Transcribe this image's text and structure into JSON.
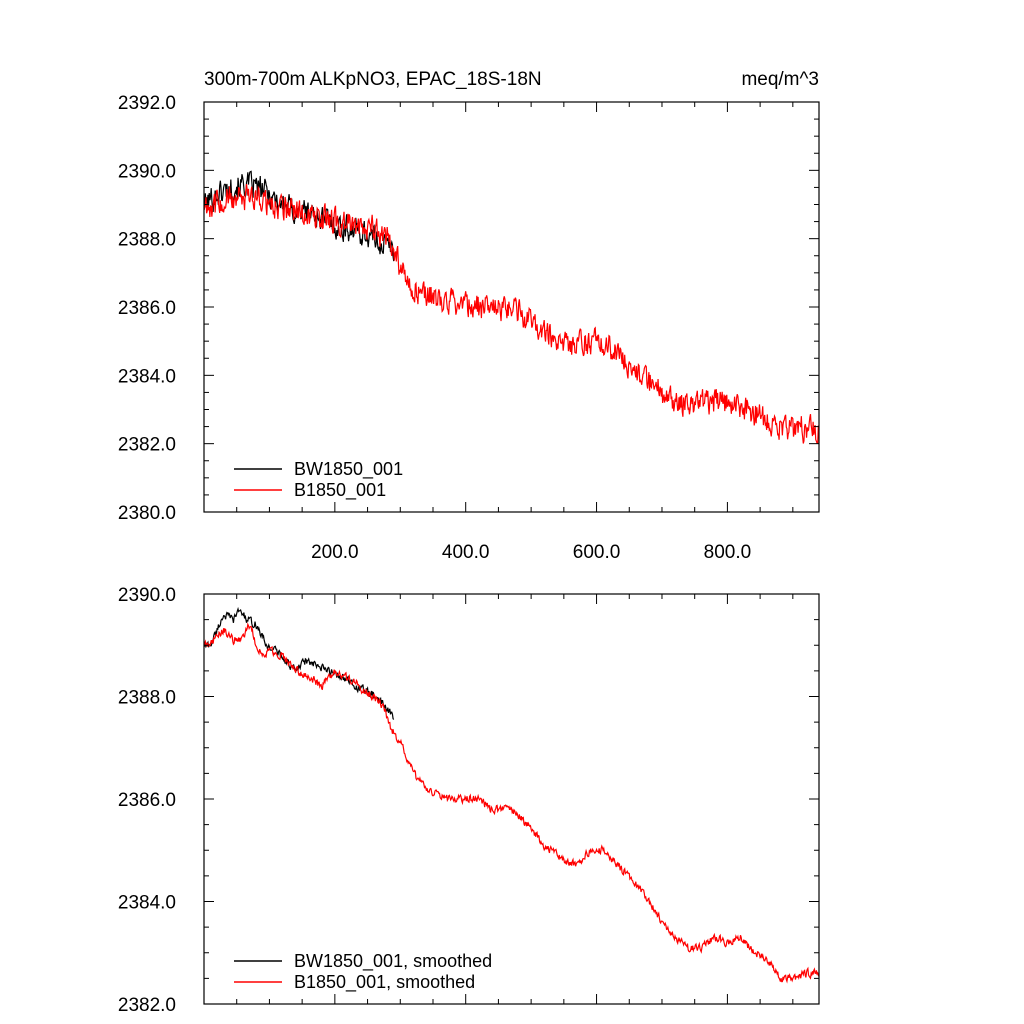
{
  "chart_data": [
    {
      "type": "line",
      "title": "300m-700m ALKpNO3, EPAC_18S-18N",
      "units": "meq/m^3",
      "xlabel": "",
      "ylabel": "",
      "xlim": [
        0,
        940
      ],
      "ylim": [
        2380,
        2392
      ],
      "x_ticks": [
        200,
        400,
        600,
        800
      ],
      "x_tick_labels": [
        "200.0",
        "400.0",
        "600.0",
        "800.0"
      ],
      "y_ticks": [
        2380,
        2382,
        2384,
        2386,
        2388,
        2390,
        2392
      ],
      "y_tick_labels": [
        "2380.0",
        "2382.0",
        "2384.0",
        "2386.0",
        "2388.0",
        "2390.0",
        "2392.0"
      ],
      "legend_position": "bottom-left",
      "series": [
        {
          "name": "BW1850_001",
          "color": "#000000",
          "noise": 0.35,
          "x": [
            0,
            20,
            40,
            60,
            80,
            100,
            120,
            140,
            160,
            180,
            200,
            220,
            240,
            260,
            280,
            290
          ],
          "y": [
            2389.0,
            2389.3,
            2389.5,
            2389.6,
            2389.5,
            2389.3,
            2389.0,
            2388.8,
            2388.8,
            2388.6,
            2388.4,
            2388.3,
            2388.2,
            2388.0,
            2387.8,
            2387.7
          ]
        },
        {
          "name": "B1850_001",
          "color": "#ff0000",
          "noise": 0.35,
          "x": [
            0,
            20,
            40,
            60,
            80,
            100,
            140,
            180,
            220,
            260,
            280,
            300,
            320,
            360,
            400,
            440,
            480,
            500,
            520,
            560,
            590,
            620,
            650,
            680,
            720,
            760,
            800,
            840,
            880,
            940
          ],
          "y": [
            2389.0,
            2389.0,
            2389.2,
            2389.1,
            2389.3,
            2389.0,
            2388.8,
            2388.6,
            2388.4,
            2388.3,
            2388.0,
            2387.2,
            2386.5,
            2386.2,
            2386.1,
            2385.9,
            2385.9,
            2385.6,
            2385.3,
            2384.8,
            2385.0,
            2384.8,
            2384.3,
            2383.8,
            2383.2,
            2383.2,
            2383.2,
            2382.9,
            2382.5,
            2382.4
          ]
        }
      ]
    },
    {
      "type": "line",
      "title": "",
      "xlabel": "",
      "ylabel": "",
      "xlim": [
        0,
        940
      ],
      "ylim": [
        2382,
        2390
      ],
      "y_ticks": [
        2382,
        2384,
        2386,
        2388,
        2390
      ],
      "y_tick_labels": [
        "2382.0",
        "2384.0",
        "2386.0",
        "2388.0",
        "2390.0"
      ],
      "legend_position": "bottom-left",
      "series": [
        {
          "name": "BW1850_001, smoothed",
          "color": "#000000",
          "noise": 0.07,
          "x": [
            0,
            10,
            20,
            30,
            45,
            55,
            65,
            80,
            95,
            110,
            125,
            140,
            155,
            170,
            190,
            210,
            230,
            250,
            270,
            285,
            290
          ],
          "y": [
            2389.0,
            2389.0,
            2389.3,
            2389.6,
            2389.5,
            2389.7,
            2389.5,
            2389.4,
            2389.0,
            2388.9,
            2388.7,
            2388.5,
            2388.7,
            2388.6,
            2388.5,
            2388.4,
            2388.2,
            2388.1,
            2387.9,
            2387.7,
            2387.5
          ]
        },
        {
          "name": "B1850_001, smoothed",
          "color": "#ff0000",
          "noise": 0.07,
          "x": [
            0,
            15,
            30,
            45,
            55,
            70,
            80,
            90,
            100,
            120,
            140,
            160,
            180,
            200,
            210,
            230,
            245,
            260,
            275,
            285,
            300,
            320,
            340,
            370,
            400,
            420,
            440,
            460,
            480,
            500,
            520,
            550,
            570,
            590,
            610,
            640,
            670,
            700,
            720,
            740,
            760,
            780,
            800,
            820,
            840,
            860,
            880,
            900,
            920,
            940
          ],
          "y": [
            2389.0,
            2389.1,
            2389.3,
            2389.1,
            2389.1,
            2389.4,
            2389.0,
            2388.8,
            2388.9,
            2388.8,
            2388.5,
            2388.4,
            2388.2,
            2388.5,
            2388.4,
            2388.3,
            2388.1,
            2388.0,
            2387.8,
            2387.4,
            2387.1,
            2386.5,
            2386.2,
            2386.0,
            2386.0,
            2386.0,
            2385.8,
            2385.8,
            2385.7,
            2385.4,
            2385.1,
            2384.8,
            2384.7,
            2385.0,
            2385.0,
            2384.6,
            2384.2,
            2383.6,
            2383.3,
            2383.1,
            2383.1,
            2383.3,
            2383.2,
            2383.3,
            2383.0,
            2382.9,
            2382.5,
            2382.5,
            2382.6,
            2382.6
          ]
        }
      ]
    }
  ]
}
